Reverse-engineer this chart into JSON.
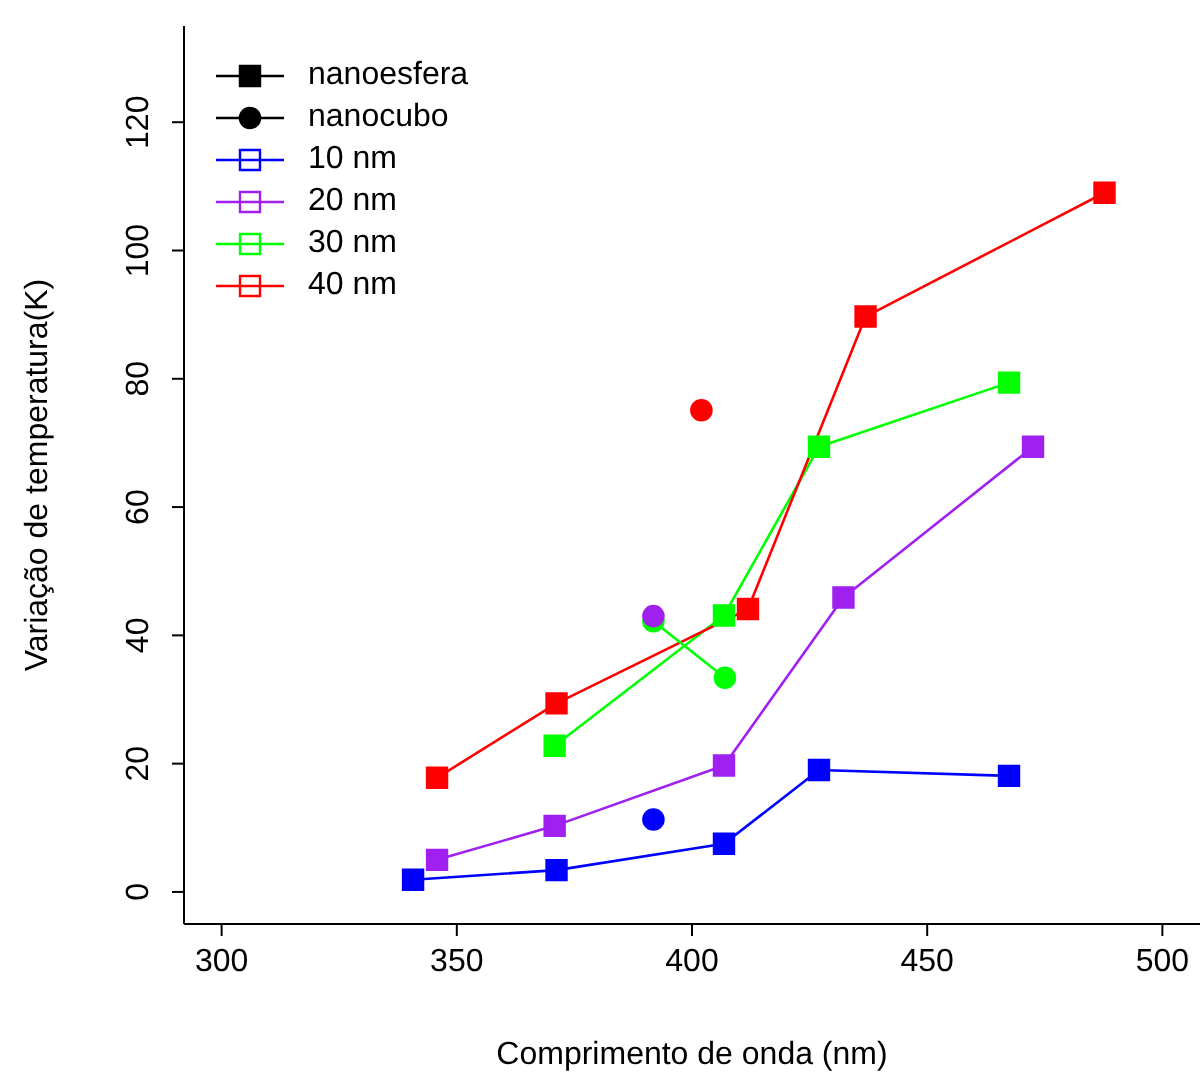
{
  "chart_data": {
    "type": "line",
    "xlabel": "Comprimento de onda (nm)",
    "ylabel": "Variação de temperatura(K)",
    "xlim": [
      292,
      508
    ],
    "ylim": [
      -5,
      135
    ],
    "xticks": [
      300,
      350,
      400,
      450,
      500
    ],
    "yticks": [
      0,
      20,
      40,
      60,
      80,
      100,
      120
    ],
    "grid": false,
    "legend": "top left",
    "line_style": "solid",
    "series": [
      {
        "name": "nanoesfera",
        "color": "#000000",
        "marker": "square"
      },
      {
        "name": "nanocubo",
        "color": "#000000",
        "marker": "circle"
      },
      {
        "name": "10 nm",
        "color": "#0000ff",
        "marker": "square",
        "x": [
          340.7,
          371.2,
          406.8,
          427,
          467.4
        ],
        "values": [
          1.9,
          3.4,
          7.5,
          19,
          18.1
        ]
      },
      {
        "name": "20 nm",
        "color": "#a020f0",
        "marker": "square",
        "x": [
          345.8,
          370.8,
          406.8,
          432.2,
          472.5
        ],
        "values": [
          5,
          10.3,
          19.7,
          45.9,
          69.4
        ]
      },
      {
        "name": "30 nm",
        "color": "#00ff00",
        "marker": "square",
        "x": [
          370.8,
          406.8,
          427,
          467.4
        ],
        "values": [
          22.8,
          43.1,
          69.4,
          79.4
        ]
      },
      {
        "name": "40 nm",
        "color": "#ff0000",
        "marker": "square",
        "x": [
          345.8,
          371.2,
          411.9,
          436.9,
          487.7
        ],
        "values": [
          17.8,
          29.4,
          44.1,
          89.7,
          109
        ]
      },
      {
        "type": "scatter",
        "color": "#0000ff",
        "marker": "circle",
        "x": [
          391.8
        ],
        "values": [
          11.3
        ]
      },
      {
        "color": "#00ff00",
        "marker": "circle",
        "x": [
          391.8,
          407
        ],
        "values": [
          42.2,
          33.4
        ]
      },
      {
        "type": "scatter",
        "color": "#a020f0",
        "marker": "circle",
        "x": [
          391.8
        ],
        "values": [
          43
        ]
      },
      {
        "type": "scatter",
        "color": "#ff0000",
        "marker": "circle",
        "x": [
          402
        ],
        "values": [
          75.1
        ]
      }
    ]
  }
}
